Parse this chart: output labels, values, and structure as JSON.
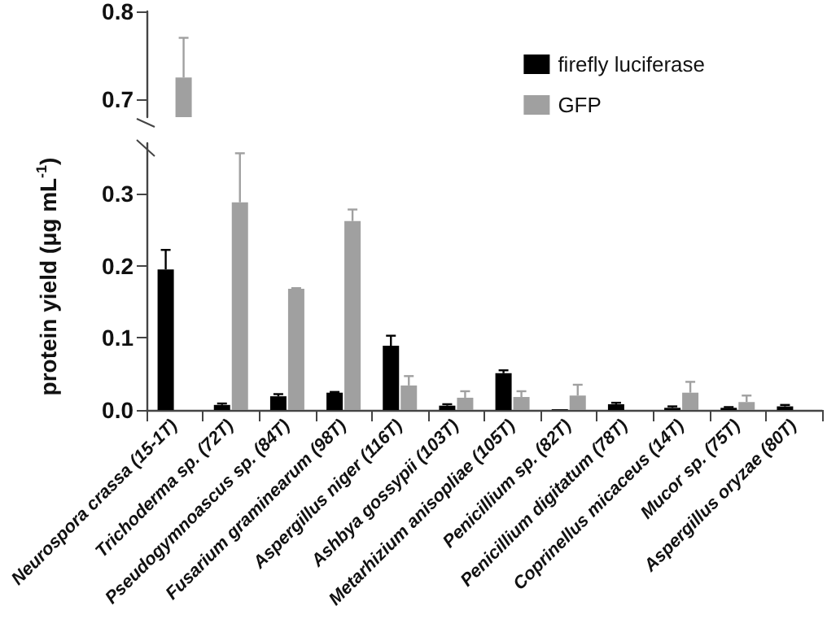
{
  "chart_data": [
    {
      "type": "bar",
      "categories": [
        null
      ],
      "series": [
        {
          "color": "#a0a0a0",
          "values": [
            0.725
          ],
          "errors": [
            0.045
          ]
        }
      ],
      "ylim": [
        0.68,
        0.8
      ],
      "yticks": [
        0.7,
        0.8
      ],
      "tick_labels": "y",
      "grid": false
    },
    {
      "type": "bar",
      "ylabel": "protein yield (μg mL$^{-1}$)",
      "categories": [
        "Neurospora crassa (15-1T)",
        "Trichoderma sp. (72T)",
        "Pseudogymnoascus sp. (84T)",
        "Fusarium graminearum (98T)",
        "Aspergillus niger (116T)",
        "Ashbya gossypii (103T)",
        "Metarhizium anisopliae (105T)",
        "Penicillium sp. (82T)",
        "Penicillium digitatum (78T)",
        "Coprinellus micaceus (14T)",
        "Mucor sp. (75T)",
        "Aspergillus oryzae (80T)"
      ],
      "series": [
        {
          "name": "firefly luciferase",
          "color": "#000000",
          "values": [
            0.195,
            0.007,
            0.019,
            0.024,
            0.089,
            0.006,
            0.051,
            0.001,
            0.008,
            0.003,
            0.003,
            0.005
          ],
          "errors": [
            0.027,
            0.002,
            0.003,
            0.001,
            0.014,
            0.002,
            0.004,
            null,
            0.002,
            0.002,
            0.001,
            0.002
          ]
        },
        {
          "name": "GFP",
          "color": "#a0a0a0",
          "values": [
            null,
            0.288,
            0.168,
            0.262,
            0.034,
            0.017,
            0.018,
            0.02,
            null,
            0.024,
            0.011,
            null
          ],
          "errors": [
            null,
            0.068,
            0.001,
            0.016,
            0.013,
            0.009,
            0.008,
            0.015,
            null,
            0.015,
            0.009,
            null
          ]
        }
      ],
      "ylim": [
        0,
        0.37
      ],
      "yticks": [
        {
          "value": 0,
          "label": "0.0"
        },
        0.1,
        0.2,
        0.3
      ],
      "legend": "top right",
      "grid": false
    }
  ]
}
